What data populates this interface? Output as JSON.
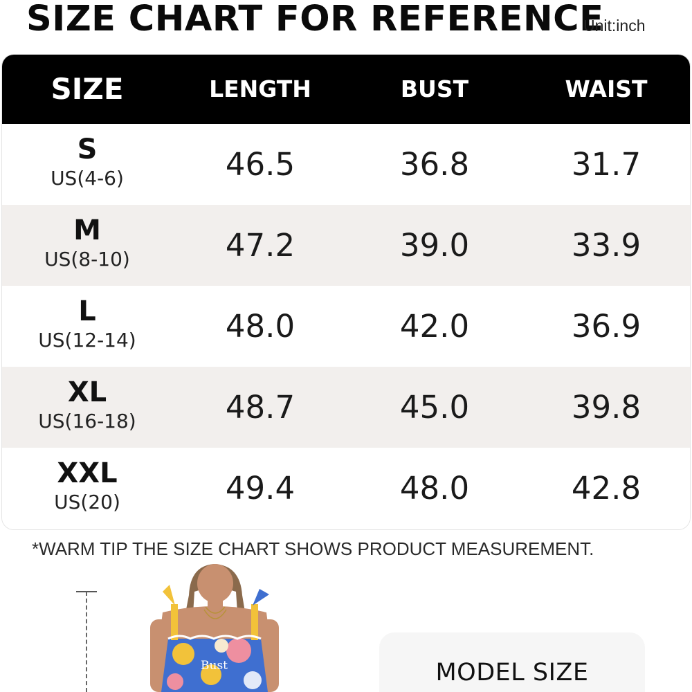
{
  "title": "SIZE CHART FOR REFERENCE",
  "unit": "Unit:inch",
  "table": {
    "headers": [
      "SIZE",
      "LENGTH",
      "BUST",
      "WAIST"
    ],
    "rows": [
      {
        "size": "S",
        "us": "US(4-6)",
        "length": "46.5",
        "bust": "36.8",
        "waist": "31.7"
      },
      {
        "size": "M",
        "us": "US(8-10)",
        "length": "47.2",
        "bust": "39.0",
        "waist": "33.9"
      },
      {
        "size": "L",
        "us": "US(12-14)",
        "length": "48.0",
        "bust": "42.0",
        "waist": "36.9"
      },
      {
        "size": "XL",
        "us": "US(16-18)",
        "length": "48.7",
        "bust": "45.0",
        "waist": "39.8"
      },
      {
        "size": "XXL",
        "us": "US(20)",
        "length": "49.4",
        "bust": "48.0",
        "waist": "42.8"
      }
    ]
  },
  "tip": "*WARM TIP THE SIZE CHART SHOWS PRODUCT MEASUREMENT.",
  "photo": {
    "bust_label": "Bust",
    "colors": {
      "skin": "#c89070",
      "hair": "#8a6a4c",
      "floral_blue": "#3f6fd0",
      "floral_yellow": "#f2c23a",
      "floral_pink": "#ee8fa0"
    }
  },
  "model_box": {
    "title": "MODEL SIZE"
  }
}
